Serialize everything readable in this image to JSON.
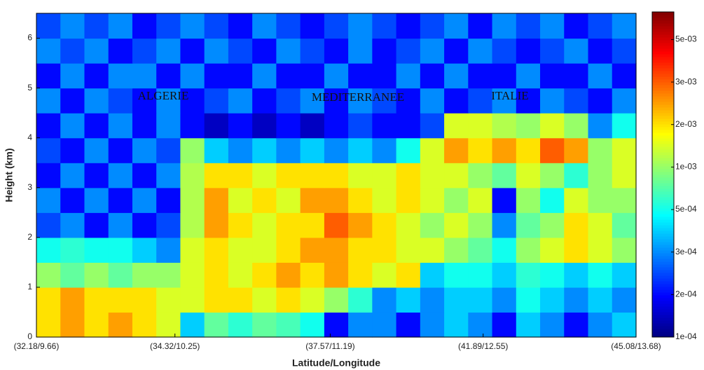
{
  "chart_data": {
    "type": "heatmap",
    "x_label": "Latitude/Longitude",
    "y_label": "Height (km)",
    "annotations": [
      "ALGERIE",
      "MEDITERRANEE",
      "ITALIE"
    ],
    "xlim": [
      0,
      100
    ],
    "xticks": [
      {
        "value": 0,
        "label": "(32.18/9.66)"
      },
      {
        "value": 23.1,
        "label": "(34.32/10.25)"
      },
      {
        "value": 49,
        "label": "(37.57/11.19)"
      },
      {
        "value": 74.5,
        "label": "(41.89/12.55)"
      },
      {
        "value": 100,
        "label": "(45.08/13.68)"
      }
    ],
    "ylim": [
      0,
      6.5
    ],
    "yticks": [
      0,
      1,
      2,
      3,
      4,
      5,
      6
    ],
    "xbins": [
      0,
      4,
      8,
      12,
      16,
      20,
      24,
      28,
      32,
      36,
      40,
      44,
      48,
      52,
      56,
      60,
      64,
      68,
      72,
      76,
      80,
      84,
      88,
      92,
      96,
      100
    ],
    "ybins": [
      0,
      0.5,
      1,
      1.5,
      2,
      2.5,
      3,
      3.5,
      4,
      4.5,
      5,
      5.5,
      6,
      6.5
    ],
    "colormap": "jet",
    "clim": [
      0.0001,
      0.0063
    ],
    "cticks": [
      {
        "value": 0.0001,
        "label": "1e-04"
      },
      {
        "value": 0.0002,
        "label": "2e-04"
      },
      {
        "value": 0.0003,
        "label": "3e-04"
      },
      {
        "value": 0.0005,
        "label": "5e-04"
      },
      {
        "value": 0.001,
        "label": "1e-03"
      },
      {
        "value": 0.002,
        "label": "2e-03"
      },
      {
        "value": 0.003,
        "label": "3e-03"
      },
      {
        "value": 0.005,
        "label": "5e-03"
      }
    ],
    "z": [
      [
        0.002,
        0.0025,
        0.002,
        0.0025,
        0.002,
        0.0015,
        0.0004,
        0.0008,
        0.0006,
        0.0008,
        0.0007,
        0.0005,
        0.0002,
        0.0003,
        0.0003,
        0.0002,
        0.0003,
        0.0004,
        0.0003,
        0.0002,
        0.0004,
        0.0003,
        0.0002,
        0.0003,
        0.0004
      ],
      [
        0.002,
        0.0025,
        0.002,
        0.002,
        0.002,
        0.0015,
        0.0015,
        0.002,
        0.002,
        0.0015,
        0.002,
        0.0015,
        0.001,
        0.0006,
        0.0003,
        0.0004,
        0.0003,
        0.0004,
        0.0004,
        0.0003,
        0.0005,
        0.0004,
        0.0003,
        0.0004,
        0.0003
      ],
      [
        0.001,
        0.0008,
        0.001,
        0.0008,
        0.001,
        0.001,
        0.0015,
        0.002,
        0.0015,
        0.002,
        0.0025,
        0.002,
        0.0025,
        0.002,
        0.0015,
        0.002,
        0.0004,
        0.0005,
        0.0005,
        0.0004,
        0.0006,
        0.0005,
        0.0004,
        0.0005,
        0.0004
      ],
      [
        0.0005,
        0.0006,
        0.0005,
        0.0005,
        0.0004,
        0.0003,
        0.0015,
        0.002,
        0.0015,
        0.0015,
        0.002,
        0.0025,
        0.0025,
        0.002,
        0.002,
        0.0015,
        0.0015,
        0.001,
        0.0008,
        0.0005,
        0.001,
        0.0015,
        0.002,
        0.0015,
        0.001
      ],
      [
        0.00025,
        0.0003,
        0.0002,
        0.0003,
        0.0002,
        0.00025,
        0.0012,
        0.0025,
        0.002,
        0.0015,
        0.002,
        0.002,
        0.003,
        0.0025,
        0.002,
        0.0015,
        0.001,
        0.0015,
        0.001,
        0.0003,
        0.0008,
        0.001,
        0.002,
        0.0015,
        0.0008
      ],
      [
        0.0003,
        0.0002,
        0.0003,
        0.0002,
        0.0003,
        0.0002,
        0.0012,
        0.0025,
        0.0015,
        0.002,
        0.0015,
        0.0025,
        0.0025,
        0.002,
        0.0015,
        0.002,
        0.0015,
        0.001,
        0.0015,
        0.0002,
        0.001,
        0.0005,
        0.0015,
        0.001,
        0.001
      ],
      [
        0.0002,
        0.0003,
        0.0002,
        0.0003,
        0.0002,
        0.0003,
        0.0012,
        0.002,
        0.002,
        0.0015,
        0.002,
        0.002,
        0.002,
        0.0015,
        0.0015,
        0.002,
        0.0015,
        0.0015,
        0.001,
        0.0008,
        0.0015,
        0.001,
        0.0006,
        0.001,
        0.0015
      ],
      [
        0.00025,
        0.0002,
        0.0003,
        0.0002,
        0.0003,
        0.00025,
        0.001,
        0.0004,
        0.0003,
        0.0004,
        0.0003,
        0.0004,
        0.0003,
        0.0004,
        0.0003,
        0.0005,
        0.0015,
        0.0025,
        0.002,
        0.0025,
        0.002,
        0.003,
        0.0025,
        0.001,
        0.0015
      ],
      [
        0.0002,
        0.0003,
        0.0002,
        0.0003,
        0.0002,
        0.0003,
        0.0002,
        0.00015,
        0.0002,
        0.00015,
        0.0002,
        0.00015,
        0.0002,
        0.00025,
        0.0002,
        0.0002,
        0.00025,
        0.0015,
        0.0015,
        0.0012,
        0.001,
        0.0015,
        0.001,
        0.0003,
        0.0005
      ],
      [
        0.0003,
        0.0002,
        0.0003,
        0.00025,
        0.0002,
        0.0003,
        0.0002,
        0.00025,
        0.0003,
        0.0002,
        0.00025,
        0.0003,
        0.0002,
        0.0003,
        0.00025,
        0.0002,
        0.0003,
        0.0002,
        0.00025,
        0.0003,
        0.0002,
        0.0003,
        0.00025,
        0.0002,
        0.0003
      ],
      [
        0.0002,
        0.0003,
        0.0002,
        0.0003,
        0.0003,
        0.0002,
        0.0003,
        0.0002,
        0.0002,
        0.0003,
        0.0002,
        0.0002,
        0.0003,
        0.0002,
        0.0002,
        0.0003,
        0.0002,
        0.0003,
        0.0002,
        0.0002,
        0.0003,
        0.0002,
        0.0002,
        0.0003,
        0.0002
      ],
      [
        0.0003,
        0.00025,
        0.0003,
        0.0002,
        0.00025,
        0.0003,
        0.0002,
        0.0003,
        0.00025,
        0.0002,
        0.0003,
        0.00025,
        0.0002,
        0.0003,
        0.0002,
        0.00025,
        0.0003,
        0.0002,
        0.0003,
        0.00025,
        0.0002,
        0.00025,
        0.0003,
        0.0002,
        0.00025
      ],
      [
        0.00025,
        0.0003,
        0.00025,
        0.0003,
        0.0002,
        0.00025,
        0.0003,
        0.00025,
        0.0002,
        0.0003,
        0.00025,
        0.0002,
        0.00025,
        0.0003,
        0.00025,
        0.0002,
        0.00025,
        0.0003,
        0.0002,
        0.0003,
        0.00025,
        0.0003,
        0.0002,
        0.00025,
        0.0003
      ]
    ]
  }
}
